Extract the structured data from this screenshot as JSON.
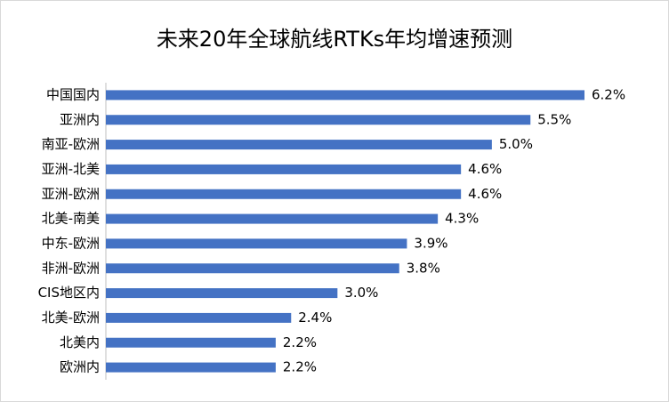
{
  "chart_data": {
    "type": "hbar",
    "title": "未来20年全球航线RTKs年均增速预测",
    "categories": [
      "中国国内",
      "亚洲内",
      "南亚-欧洲",
      "亚洲-北美",
      "亚洲-欧洲",
      "北美-南美",
      "中东-欧洲",
      "非洲-欧洲",
      "CIS地区内",
      "北美-欧洲",
      "北美内",
      "欧洲内"
    ],
    "values": [
      6.2,
      5.5,
      5.0,
      4.6,
      4.6,
      4.3,
      3.9,
      3.8,
      3.0,
      2.4,
      2.2,
      2.2
    ],
    "value_labels": [
      "6.2%",
      "5.5%",
      "5.0%",
      "4.6%",
      "4.6%",
      "4.3%",
      "3.9%",
      "3.8%",
      "3.0%",
      "2.4%",
      "2.2%",
      "2.2%"
    ],
    "color": "#4472c4"
  }
}
